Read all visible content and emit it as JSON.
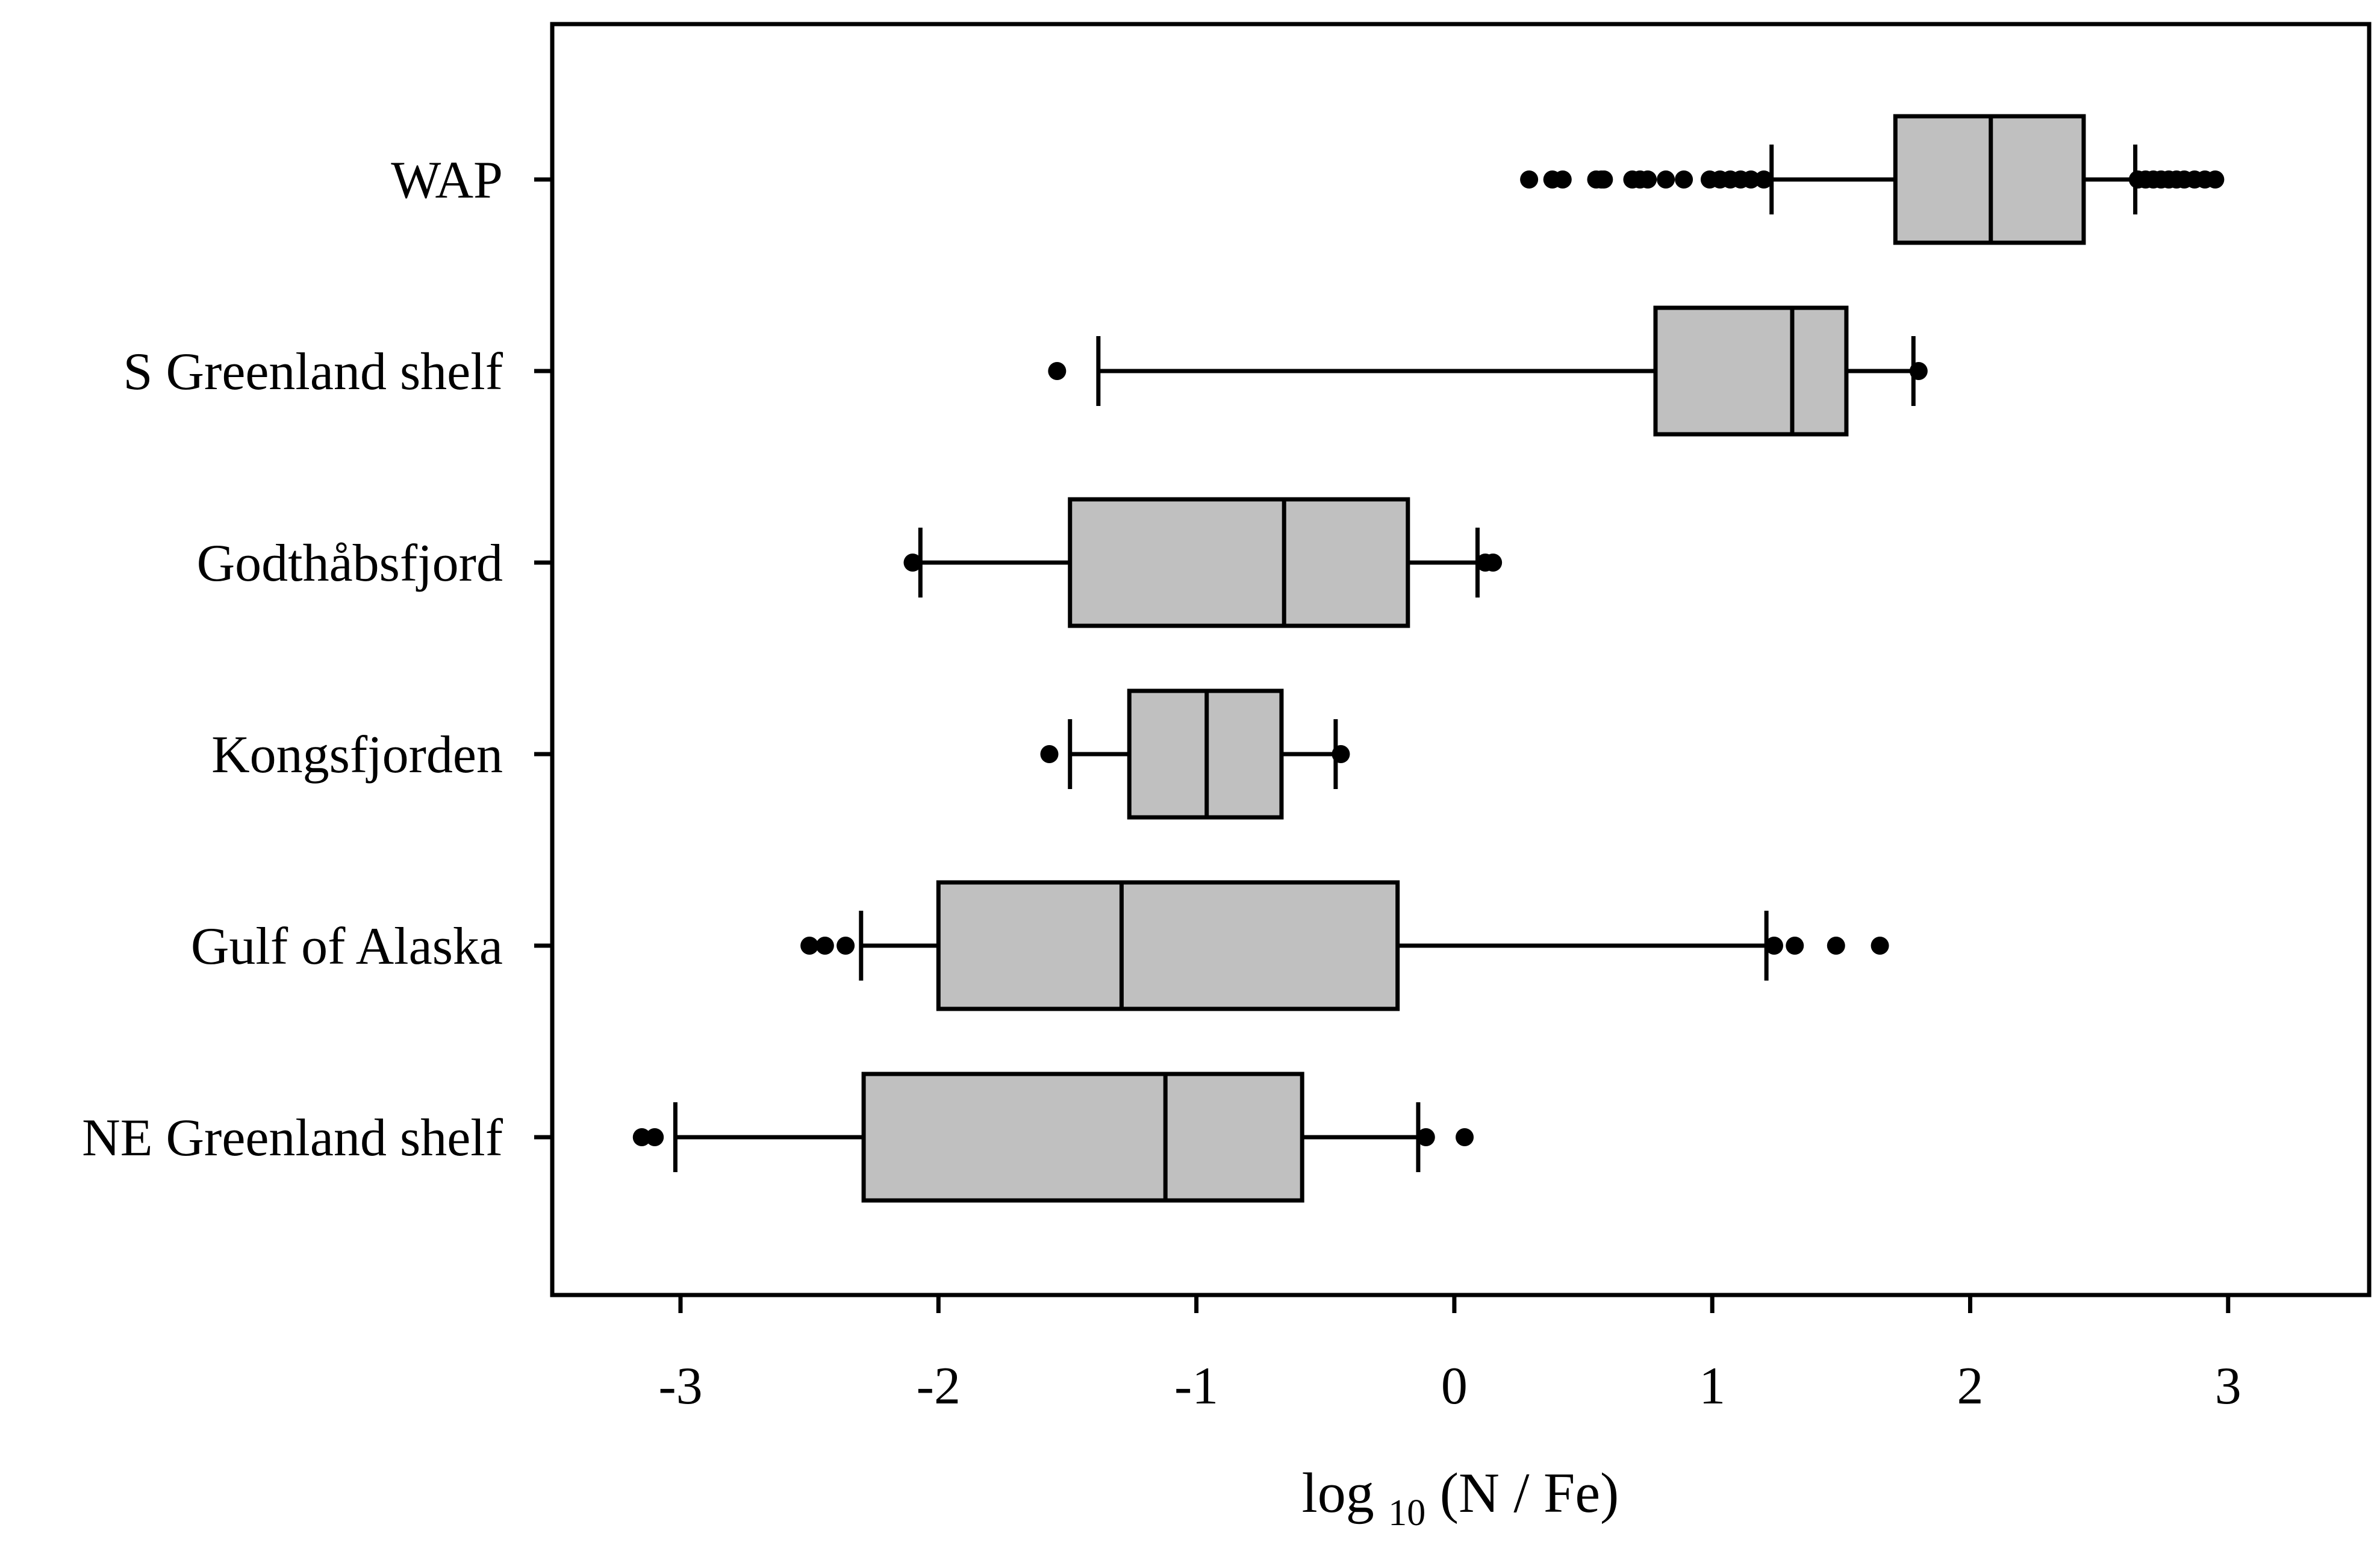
{
  "chart_data": {
    "type": "boxplot",
    "orientation": "horizontal",
    "xlabel": {
      "prefix": "log",
      "subscript": "10",
      "suffix": " (N / Fe)"
    },
    "xlim": [
      -3.5,
      3.5
    ],
    "xticks": [
      -3,
      -2,
      -1,
      0,
      1,
      2,
      3
    ],
    "xtick_labels": [
      "-3",
      "-2",
      "-1",
      "0",
      "1",
      "2",
      "3"
    ],
    "grid": false,
    "legend": "none",
    "colors": {
      "box_fill": "#c0c0c0",
      "stroke": "#000000",
      "outlier": "#000000"
    },
    "categories": [
      "WAP",
      "S Greenland shelf",
      "Godthåbsfjord",
      "Kongsfjorden",
      "Gulf of Alaska",
      "NE Greenland shelf"
    ],
    "boxes": [
      {
        "label": "WAP",
        "whisker_low": 1.23,
        "q1": 1.71,
        "median": 2.08,
        "q3": 2.44,
        "whisker_high": 2.64,
        "outliers": [
          0.29,
          0.38,
          0.42,
          0.55,
          0.57,
          0.58,
          0.69,
          0.72,
          0.75,
          0.82,
          0.89,
          0.99,
          1.03,
          1.07,
          1.11,
          1.15,
          1.2,
          2.65,
          2.68,
          2.71,
          2.74,
          2.77,
          2.8,
          2.83,
          2.87,
          2.91,
          2.95
        ]
      },
      {
        "label": "S Greenland shelf",
        "whisker_low": -1.38,
        "q1": 0.78,
        "median": 1.31,
        "q3": 1.52,
        "whisker_high": 1.78,
        "outliers": [
          -1.54,
          1.8
        ]
      },
      {
        "label": "Godthåbsfjord",
        "whisker_low": -2.07,
        "q1": -1.49,
        "median": -0.66,
        "q3": -0.18,
        "whisker_high": 0.09,
        "outliers": [
          -2.1,
          0.12,
          0.15
        ]
      },
      {
        "label": "Kongsfjorden",
        "whisker_low": -1.49,
        "q1": -1.26,
        "median": -0.96,
        "q3": -0.67,
        "whisker_high": -0.46,
        "outliers": [
          -1.57,
          -0.44
        ]
      },
      {
        "label": "Gulf of Alaska",
        "whisker_low": -2.3,
        "q1": -2.0,
        "median": -1.29,
        "q3": -0.22,
        "whisker_high": 1.21,
        "outliers": [
          -2.5,
          -2.44,
          -2.36,
          1.24,
          1.32,
          1.48,
          1.65
        ]
      },
      {
        "label": "NE Greenland shelf",
        "whisker_low": -3.02,
        "q1": -2.29,
        "median": -1.12,
        "q3": -0.59,
        "whisker_high": -0.14,
        "outliers": [
          -3.15,
          -3.1,
          -0.11,
          0.04
        ]
      }
    ]
  }
}
